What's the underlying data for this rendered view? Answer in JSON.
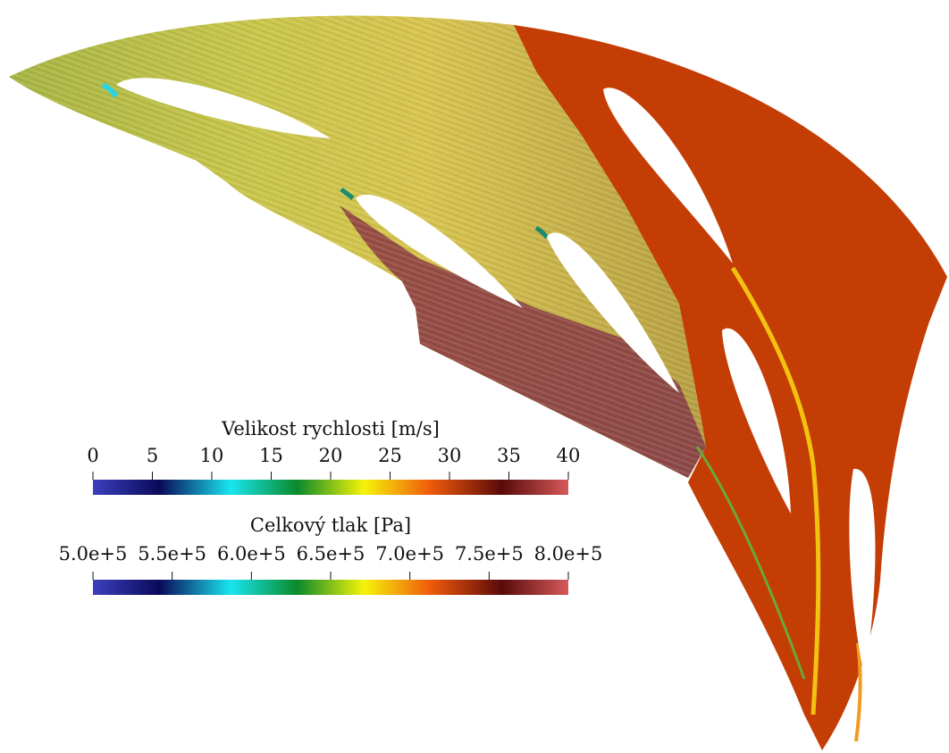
{
  "colorbars": [
    {
      "title": "Velikost rychlosti [m/s]",
      "tick_labels": [
        "0",
        "5",
        "10",
        "15",
        "20",
        "25",
        "30",
        "35",
        "40"
      ]
    },
    {
      "title": "Celkový tlak [Pa]",
      "tick_labels": [
        "5.0e+5",
        "5.5e+5",
        "6.0e+5",
        "6.5e+5",
        "7.0e+5",
        "7.5e+5",
        "8.0e+5"
      ]
    }
  ],
  "colormap": [
    "#3b40bd",
    "#0a0a5a",
    "#19e5ef",
    "#0a8a2a",
    "#f6f30a",
    "#ef5a0a",
    "#5a0a0a",
    "#d65a5a"
  ]
}
